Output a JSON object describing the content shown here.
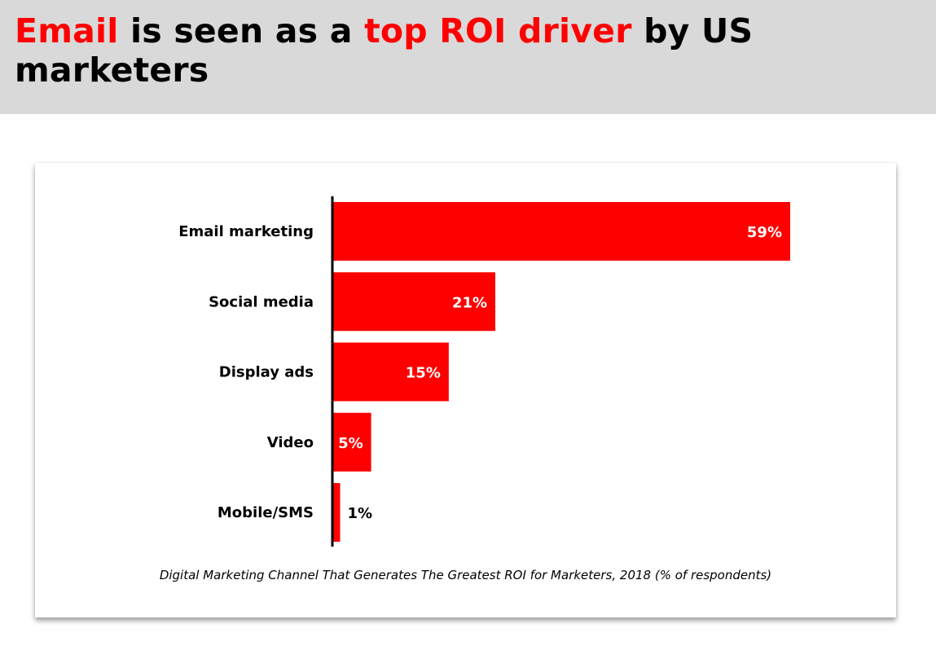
{
  "headline": {
    "parts": [
      {
        "text": "Email",
        "highlight": true
      },
      {
        "text": " is seen as a ",
        "highlight": false
      },
      {
        "text": "top ROI driver",
        "highlight": true
      },
      {
        "text": " by US marketers",
        "highlight": false
      }
    ]
  },
  "colors": {
    "accent": "#ff0000",
    "header_bg": "#d9d9d9",
    "text": "#000000",
    "value_inside": "#ffffff"
  },
  "chart_data": {
    "type": "bar",
    "orientation": "horizontal",
    "categories": [
      "Email marketing",
      "Social media",
      "Display ads",
      "Video",
      "Mobile/SMS"
    ],
    "values": [
      59,
      21,
      15,
      5,
      1
    ],
    "value_labels": [
      "59%",
      "21%",
      "15%",
      "5%",
      "1%"
    ],
    "xlim": [
      0,
      59
    ],
    "grid": false,
    "legend": "none",
    "caption": "Digital Marketing Channel That Generates The Greatest ROI for Marketers, 2018 (% of respondents)"
  }
}
